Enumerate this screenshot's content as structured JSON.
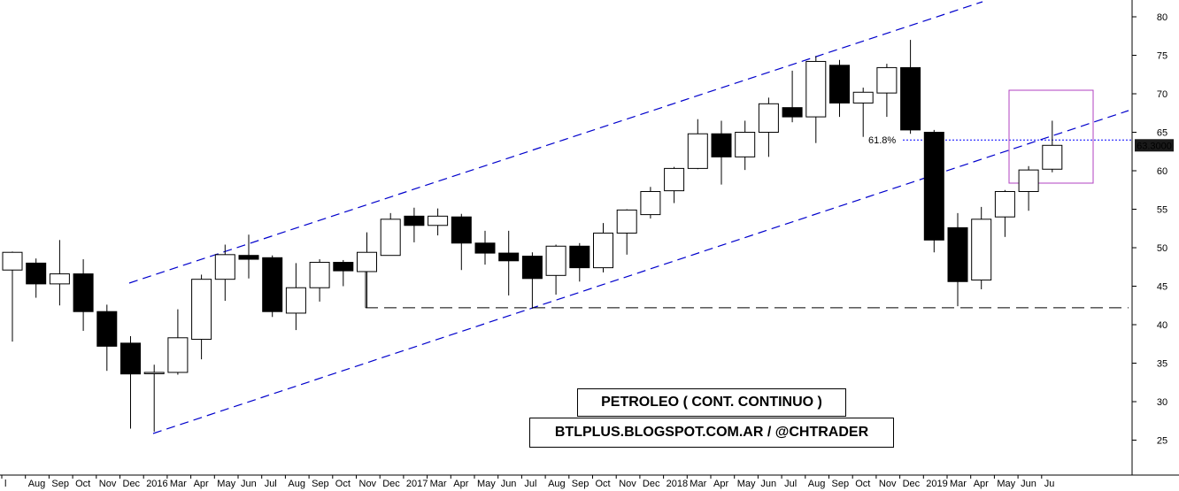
{
  "chart_data": {
    "type": "candlestick",
    "title": "PETROLEO ( CONT. CONTINUO )",
    "credit": "BTLPLUS.BLOGSPOT.COM.AR / @CHTRADER",
    "ylim": [
      22,
      82
    ],
    "yticks": [
      25,
      30,
      35,
      40,
      45,
      50,
      55,
      60,
      65,
      70,
      75,
      80
    ],
    "x_ticks": [
      "l",
      "Aug",
      "Sep",
      "Oct",
      "Nov",
      "Dec",
      "2016",
      "Mar",
      "Apr",
      "May",
      "Jun",
      "Jul",
      "Aug",
      "Sep",
      "Oct",
      "Nov",
      "Dec",
      "2017",
      "Mar",
      "Apr",
      "May",
      "Jun",
      "Jul",
      "Aug",
      "Sep",
      "Oct",
      "Nov",
      "Dec",
      "2018",
      "Mar",
      "Apr",
      "May",
      "Jun",
      "Jul",
      "Aug",
      "Sep",
      "Oct",
      "Nov",
      "Dec",
      "2019",
      "Mar",
      "Apr",
      "May",
      "Jun",
      "Ju"
    ],
    "candles": [
      {
        "month": "Jul 2015",
        "open": 47.1,
        "high": 49.5,
        "low": 37.8,
        "close": 49.4
      },
      {
        "month": "Aug 2015",
        "open": 48.0,
        "high": 48.6,
        "low": 43.5,
        "close": 45.3
      },
      {
        "month": "Sep 2015",
        "open": 45.3,
        "high": 51.0,
        "low": 42.5,
        "close": 46.6
      },
      {
        "month": "Oct 2015",
        "open": 46.6,
        "high": 48.5,
        "low": 39.2,
        "close": 41.7
      },
      {
        "month": "Nov 2015",
        "open": 41.7,
        "high": 42.6,
        "low": 34.0,
        "close": 37.2
      },
      {
        "month": "Dec 2015",
        "open": 37.6,
        "high": 38.5,
        "low": 26.5,
        "close": 33.6
      },
      {
        "month": "Jan 2016",
        "open": 33.7,
        "high": 34.8,
        "low": 26.1,
        "close": 33.8
      },
      {
        "month": "Feb 2016",
        "open": 33.8,
        "high": 42.0,
        "low": 33.5,
        "close": 38.3
      },
      {
        "month": "Mar 2016",
        "open": 38.1,
        "high": 46.5,
        "low": 35.5,
        "close": 45.9
      },
      {
        "month": "Apr 2016",
        "open": 45.9,
        "high": 50.4,
        "low": 43.1,
        "close": 49.1
      },
      {
        "month": "May 2016",
        "open": 49.0,
        "high": 51.7,
        "low": 46.0,
        "close": 48.5
      },
      {
        "month": "Jun 2016",
        "open": 48.7,
        "high": 49.0,
        "low": 41.0,
        "close": 41.7
      },
      {
        "month": "Jul 2016",
        "open": 41.5,
        "high": 48.0,
        "low": 39.3,
        "close": 44.8
      },
      {
        "month": "Aug 2016",
        "open": 44.8,
        "high": 48.5,
        "low": 43.0,
        "close": 48.1
      },
      {
        "month": "Sep 2016",
        "open": 48.1,
        "high": 48.4,
        "low": 45.0,
        "close": 47.0
      },
      {
        "month": "Oct 2016",
        "open": 46.9,
        "high": 52.0,
        "low": 42.2,
        "close": 49.4
      },
      {
        "month": "Nov 2016",
        "open": 49.0,
        "high": 54.5,
        "low": 49.0,
        "close": 53.7
      },
      {
        "month": "Dec 2016",
        "open": 54.1,
        "high": 55.2,
        "low": 50.7,
        "close": 52.9
      },
      {
        "month": "Jan 2017",
        "open": 52.9,
        "high": 55.1,
        "low": 51.6,
        "close": 54.1
      },
      {
        "month": "Feb 2017",
        "open": 54.0,
        "high": 54.4,
        "low": 47.1,
        "close": 50.6
      },
      {
        "month": "Mar 2017",
        "open": 50.6,
        "high": 52.2,
        "low": 47.8,
        "close": 49.3
      },
      {
        "month": "Apr 2017",
        "open": 49.3,
        "high": 52.2,
        "low": 43.8,
        "close": 48.3
      },
      {
        "month": "May 2017",
        "open": 48.9,
        "high": 49.4,
        "low": 42.1,
        "close": 46.0
      },
      {
        "month": "Jun 2017",
        "open": 46.4,
        "high": 50.4,
        "low": 43.9,
        "close": 50.2
      },
      {
        "month": "Jul 2017",
        "open": 50.2,
        "high": 50.6,
        "low": 45.6,
        "close": 47.4
      },
      {
        "month": "Aug 2017",
        "open": 47.4,
        "high": 53.2,
        "low": 46.8,
        "close": 51.9
      },
      {
        "month": "Sep 2017",
        "open": 51.9,
        "high": 55.0,
        "low": 49.1,
        "close": 54.9
      },
      {
        "month": "Oct 2017",
        "open": 54.3,
        "high": 57.9,
        "low": 53.8,
        "close": 57.3
      },
      {
        "month": "Nov 2017",
        "open": 57.4,
        "high": 60.5,
        "low": 55.8,
        "close": 60.3
      },
      {
        "month": "Dec 2017",
        "open": 60.3,
        "high": 66.7,
        "low": 60.2,
        "close": 64.8
      },
      {
        "month": "Jan 2018",
        "open": 64.8,
        "high": 66.5,
        "low": 58.2,
        "close": 61.8
      },
      {
        "month": "Feb 2018",
        "open": 61.8,
        "high": 66.5,
        "low": 60.1,
        "close": 65.0
      },
      {
        "month": "Mar 2018",
        "open": 65.0,
        "high": 69.5,
        "low": 61.8,
        "close": 68.7
      },
      {
        "month": "Apr 2018",
        "open": 68.2,
        "high": 73.0,
        "low": 66.3,
        "close": 67.0
      },
      {
        "month": "May 2018",
        "open": 67.0,
        "high": 74.9,
        "low": 63.6,
        "close": 74.2
      },
      {
        "month": "Jun 2018",
        "open": 73.7,
        "high": 74.4,
        "low": 67.0,
        "close": 68.8
      },
      {
        "month": "Jul 2018",
        "open": 68.8,
        "high": 70.8,
        "low": 64.4,
        "close": 70.2
      },
      {
        "month": "Aug 2018",
        "open": 70.1,
        "high": 73.9,
        "low": 67.0,
        "close": 73.4
      },
      {
        "month": "Sep 2018",
        "open": 73.4,
        "high": 77.0,
        "low": 64.8,
        "close": 65.3
      },
      {
        "month": "Oct 2018",
        "open": 65.0,
        "high": 65.3,
        "low": 49.4,
        "close": 51.0
      },
      {
        "month": "Nov 2018",
        "open": 52.6,
        "high": 54.5,
        "low": 42.4,
        "close": 45.6
      },
      {
        "month": "Dec 2018",
        "open": 45.8,
        "high": 55.3,
        "low": 44.6,
        "close": 53.7
      },
      {
        "month": "Jan 2019",
        "open": 54.0,
        "high": 57.5,
        "low": 51.4,
        "close": 57.3
      },
      {
        "month": "Feb 2019",
        "open": 57.3,
        "high": 60.6,
        "low": 54.8,
        "close": 60.1
      },
      {
        "month": "Mar 2019",
        "open": 60.2,
        "high": 66.5,
        "low": 59.8,
        "close": 63.3
      }
    ],
    "last_price_label": "63.3000",
    "fib_label": "61.8%",
    "fib_level": 64.0,
    "support_level": 42.2,
    "colors": {
      "up_fill": "#ffffff",
      "down_fill": "#000000",
      "trendline": "#0000cc",
      "fib_line": "#0000ff",
      "highlight_box": "#b040c0",
      "price_tag_bg": "#1a1a1a",
      "price_tag_text": "#33ff33",
      "support": "#000000"
    }
  }
}
